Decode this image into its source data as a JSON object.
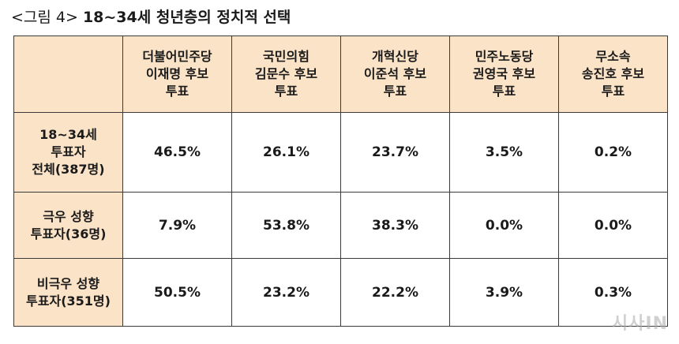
{
  "figure": {
    "label": "<그림 4>",
    "title": "18~34세 청년층의 정치적 선택"
  },
  "table": {
    "columns": [
      "더불어민주당\n이재명 후보\n투표",
      "국민의힘\n김문수 후보\n투표",
      "개혁신당\n이준석 후보\n투표",
      "민주노동당\n권영국 후보\n투표",
      "무소속\n송진호 후보\n투표"
    ],
    "rows": [
      {
        "label": "18~34세\n투표자\n전체(387명)",
        "values": [
          "46.5%",
          "26.1%",
          "23.7%",
          "3.5%",
          "0.2%"
        ]
      },
      {
        "label": "극우 성향\n투표자(36명)",
        "values": [
          "7.9%",
          "53.8%",
          "38.3%",
          "0.0%",
          "0.0%"
        ]
      },
      {
        "label": "비극우 성향\n투표자(351명)",
        "values": [
          "50.5%",
          "23.2%",
          "22.2%",
          "3.9%",
          "0.3%"
        ]
      }
    ],
    "header_color": "#fbe3c8"
  },
  "watermark": "시사IN"
}
